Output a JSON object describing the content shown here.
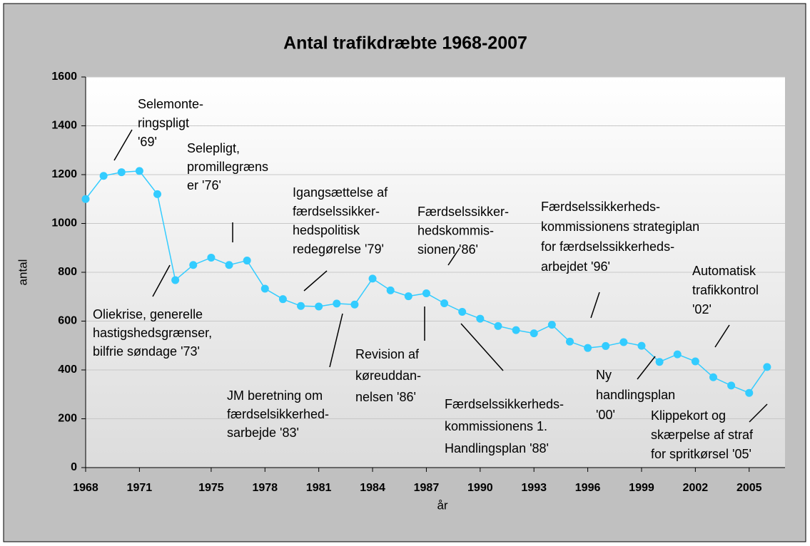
{
  "chart_data": {
    "type": "line",
    "title": "Antal trafikdræbte 1968-2007",
    "x_label": "år",
    "y_label": "antal",
    "x": [
      1968,
      1969,
      1970,
      1971,
      1972,
      1973,
      1974,
      1975,
      1976,
      1977,
      1978,
      1979,
      1980,
      1981,
      1982,
      1983,
      1984,
      1985,
      1986,
      1987,
      1988,
      1989,
      1990,
      1991,
      1992,
      1993,
      1994,
      1995,
      1996,
      1997,
      1998,
      1999,
      2000,
      2001,
      2002,
      2003,
      2004,
      2005,
      2006
    ],
    "series": [
      {
        "color": "#33ccff",
        "values": [
          1100,
          1195,
          1210,
          1215,
          1120,
          768,
          830,
          860,
          830,
          848,
          733,
          690,
          662,
          660,
          672,
          668,
          774,
          726,
          702,
          714,
          673,
          638,
          610,
          580,
          563,
          550,
          585,
          516,
          490,
          498,
          514,
          499,
          433,
          464,
          435,
          370,
          336,
          306,
          412
        ]
      }
    ],
    "xlim": [
      1968,
      2007
    ],
    "xticks": [
      1968,
      1971,
      1975,
      1978,
      1981,
      1984,
      1987,
      1990,
      1993,
      1996,
      1999,
      2002,
      2005
    ],
    "ylim": [
      0,
      1600
    ],
    "yticks": [
      0,
      200,
      400,
      600,
      800,
      1000,
      1200,
      1400,
      1600
    ],
    "grid": true,
    "annotations": [
      {
        "lines": [
          "Selemonte-",
          "ringspligt",
          "'69'"
        ]
      },
      {
        "lines": [
          "Selepligt,",
          "promillegræns",
          "er '76'"
        ]
      },
      {
        "lines": [
          "Igangsættelse af",
          "færdselssikker-",
          "hedspolitisk",
          "redegørelse '79'"
        ]
      },
      {
        "lines": [
          "Færdselssikker-",
          "hedskommis-",
          "sionen '86'"
        ]
      },
      {
        "lines": [
          "Færdselssikkerheds-",
          "kommissionens strategiplan",
          "for færdselssikkerheds-",
          "arbejdet '96'"
        ]
      },
      {
        "lines": [
          "Automatisk",
          "trafikkontrol",
          "'02'"
        ]
      },
      {
        "lines": [
          "Oliekrise, generelle",
          "hastigshedsgrænser,",
          "bilfrie søndage '73'"
        ]
      },
      {
        "lines": [
          "JM beretning om",
          "færdselsikkerhed-",
          "sarbejde '83'"
        ]
      },
      {
        "lines": [
          "Revision af",
          "køreuddan-",
          "nelsen '86'"
        ]
      },
      {
        "lines": [
          "Færdselssikkerheds-",
          "kommissionens 1.",
          "Handlingsplan '88'"
        ]
      },
      {
        "lines": [
          "Ny",
          "handlingsplan",
          "'00'"
        ]
      },
      {
        "lines": [
          "Klippekort og",
          "skærpelse af straf",
          "for spritkørsel '05'"
        ]
      }
    ]
  }
}
